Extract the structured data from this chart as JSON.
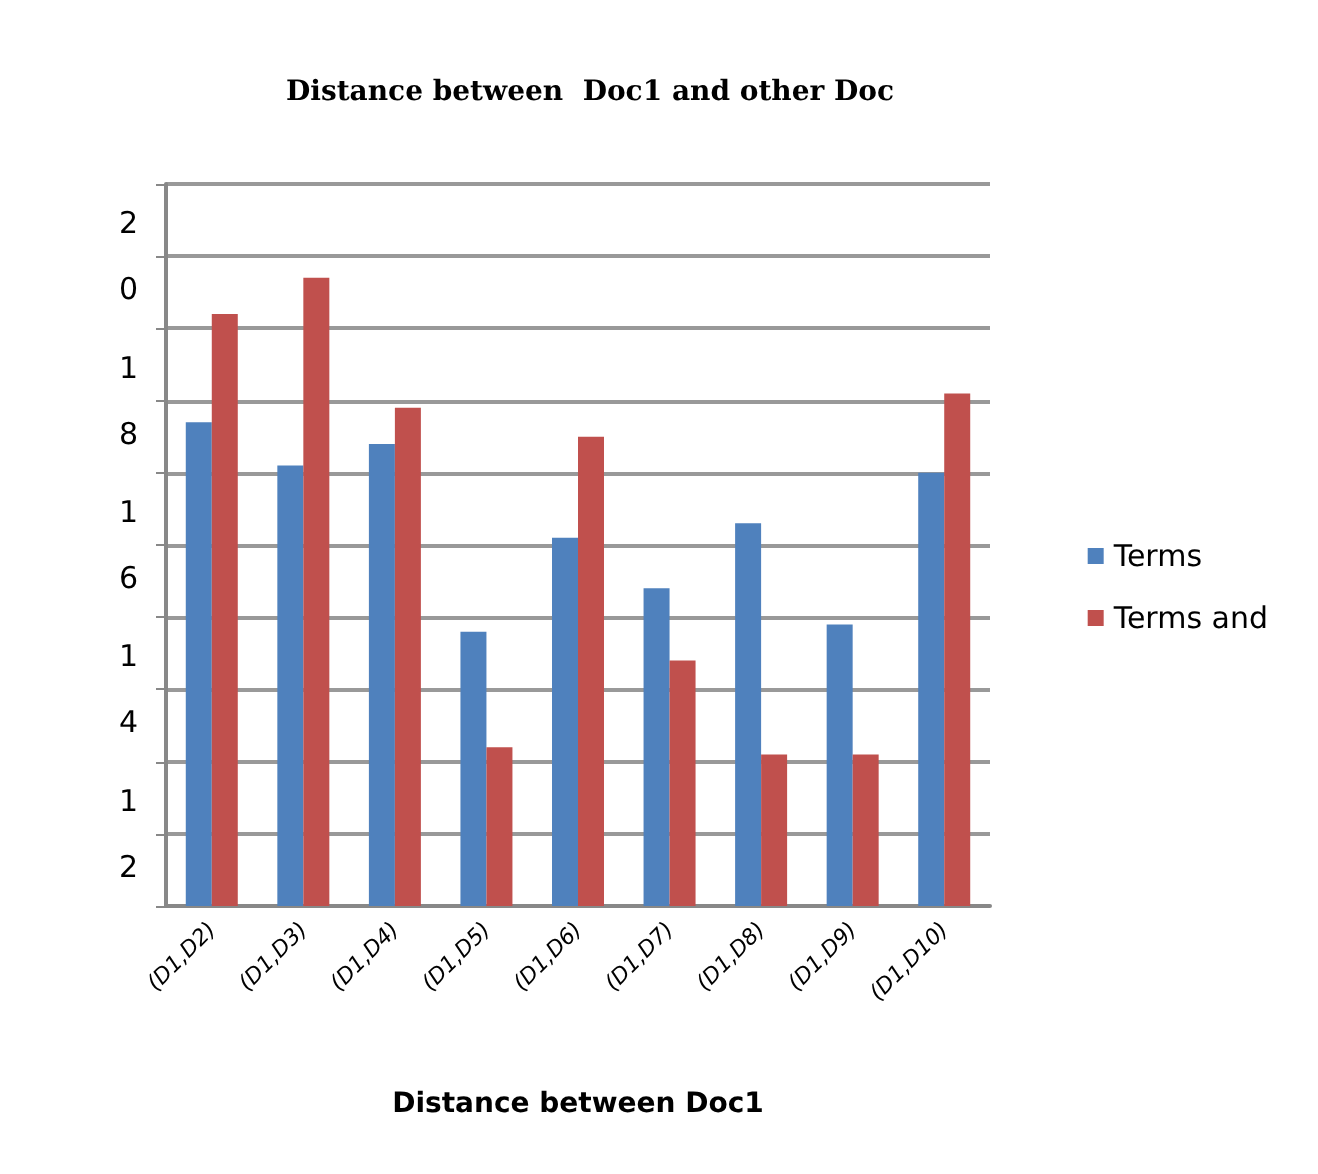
{
  "chart_data": {
    "type": "bar",
    "title": "Distance between  Doc1 and other Doc",
    "xlabel": "Distance between Doc1",
    "categories": [
      "(D1,D2)",
      "(D1,D3)",
      "(D1,D4)",
      "(D1,D5)",
      "(D1,D6)",
      "(D1,D7)",
      "(D1,D8)",
      "(D1,D9)",
      "(D1,D10)"
    ],
    "series": [
      {
        "name": "Terms",
        "color": "#4f81bd",
        "values": [
          17.7,
          17.1,
          17.4,
          14.8,
          16.1,
          15.4,
          16.3,
          14.9,
          17.0
        ]
      },
      {
        "name": "Terms and",
        "color": "#c0504d",
        "values": [
          19.2,
          19.7,
          17.9,
          13.2,
          17.5,
          14.4,
          13.1,
          13.1,
          18.1
        ]
      }
    ],
    "ylim": [
      11,
      21
    ],
    "yticks": [
      {
        "value": 11,
        "label": null
      },
      12,
      {
        "value": 13,
        "label": null
      },
      14,
      {
        "value": 15,
        "label": null
      },
      16,
      {
        "value": 17,
        "label": null
      },
      18,
      {
        "value": 19,
        "label": null
      },
      20,
      {
        "value": 21,
        "label": null
      }
    ],
    "grid": "y",
    "legend": "right"
  }
}
